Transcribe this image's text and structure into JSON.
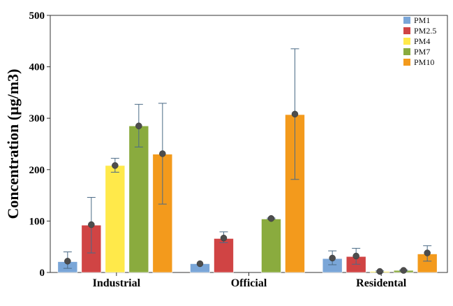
{
  "chart_data": {
    "type": "bar",
    "title": "",
    "xlabel": "",
    "ylabel": "Concentration (µg/m3)",
    "ylim": [
      0,
      500
    ],
    "yticks": [
      0,
      100,
      200,
      300,
      400,
      500
    ],
    "grid": false,
    "legend_position": "top-right",
    "categories": [
      "Industrial",
      "Official",
      "Residental"
    ],
    "series": [
      {
        "name": "PM1",
        "color": "#7aa6d8",
        "values": [
          21,
          17,
          27
        ],
        "means": [
          22,
          17,
          28
        ],
        "err_low": [
          8,
          17,
          15
        ],
        "err_high": [
          40,
          17,
          42
        ]
      },
      {
        "name": "PM2.5",
        "color": "#d04444",
        "values": [
          92,
          66,
          31
        ],
        "means": [
          93,
          67,
          32
        ],
        "err_low": [
          38,
          58,
          16
        ],
        "err_high": [
          146,
          79,
          47
        ]
      },
      {
        "name": "PM4",
        "color": "#ffe94a",
        "values": [
          208,
          0,
          2
        ],
        "means": [
          208,
          0,
          2
        ],
        "err_low": [
          195,
          0,
          0
        ],
        "err_high": [
          222,
          0,
          3
        ]
      },
      {
        "name": "PM7",
        "color": "#8aab3e",
        "values": [
          285,
          104,
          4
        ],
        "means": [
          285,
          105,
          4
        ],
        "err_low": [
          244,
          104,
          3
        ],
        "err_high": [
          327,
          106,
          5
        ]
      },
      {
        "name": "PM10",
        "color": "#f39a1c",
        "values": [
          230,
          307,
          36
        ],
        "means": [
          231,
          308,
          38
        ],
        "err_low": [
          133,
          181,
          22
        ],
        "err_high": [
          329,
          435,
          52
        ]
      }
    ]
  }
}
